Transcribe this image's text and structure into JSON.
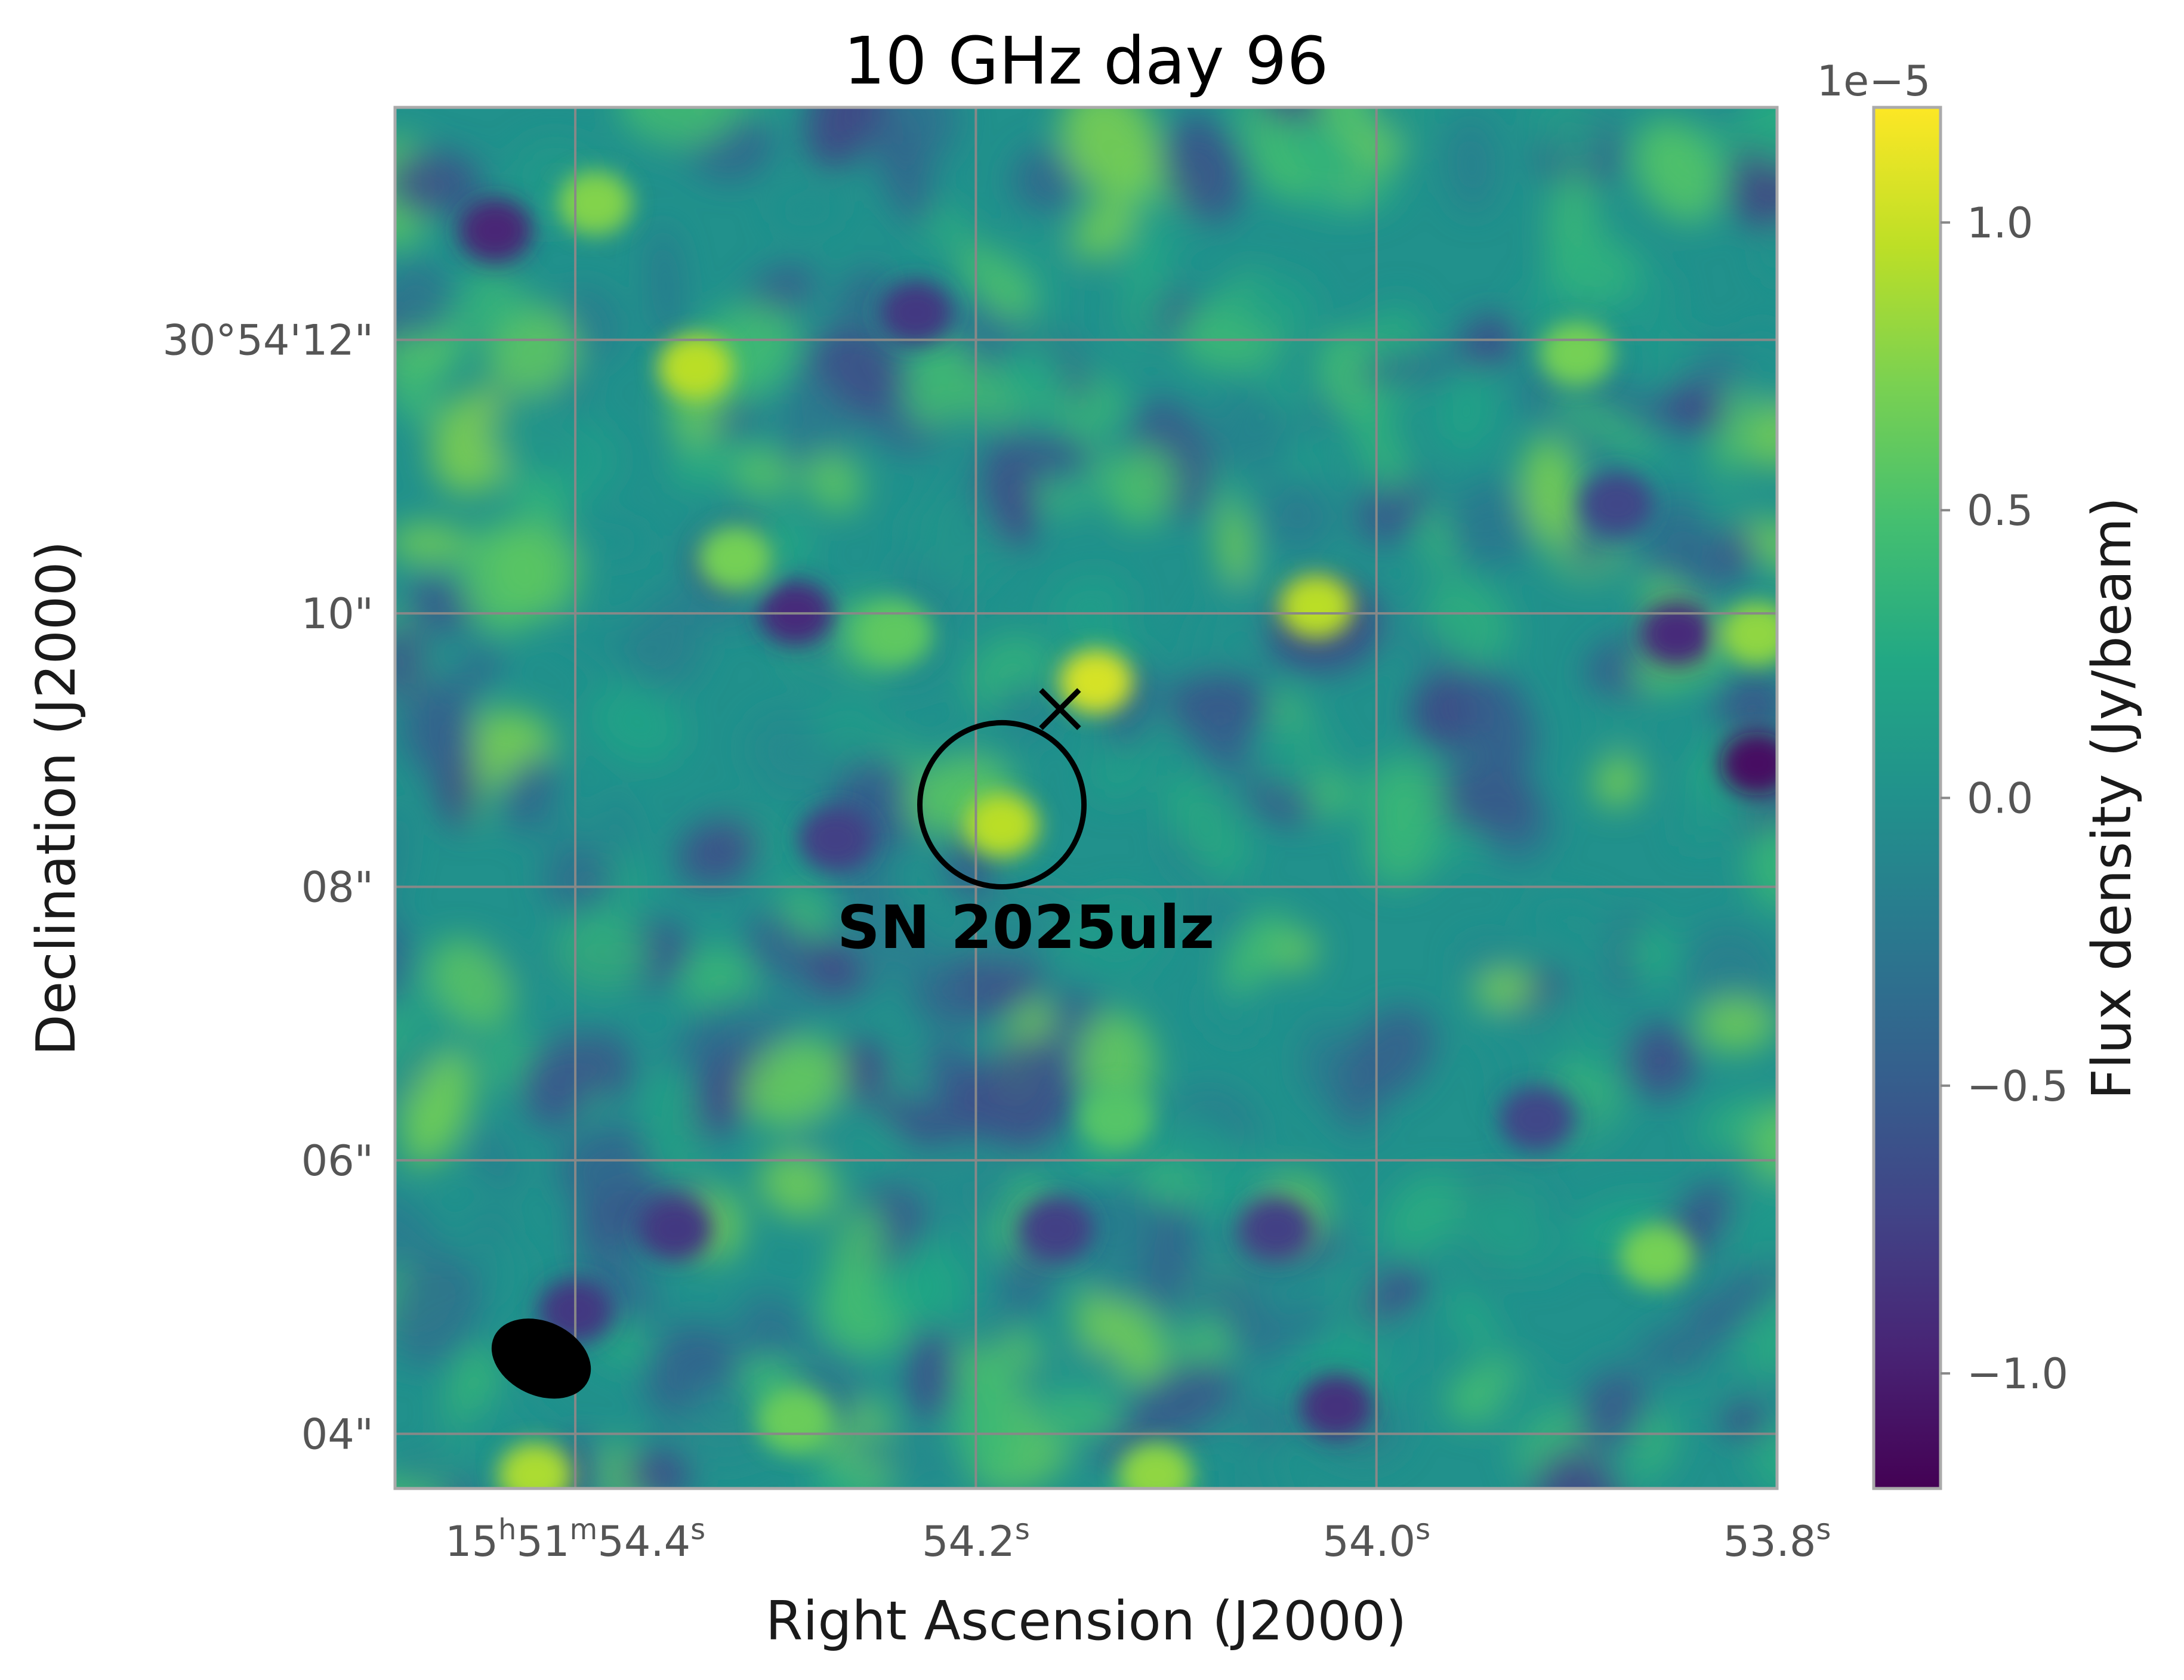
{
  "chart_data": {
    "type": "heatmap",
    "title": "10 GHz day 96",
    "xlabel": "Right Ascension (J2000)",
    "ylabel": "Declination (J2000)",
    "colorbar": {
      "label": "Flux density (Jy/beam)",
      "multiplier": "1e−5",
      "colormap": "viridis",
      "range": [
        -1.2,
        1.2
      ],
      "ticks": [
        {
          "value": -1.0,
          "label": "−1.0"
        },
        {
          "value": -0.5,
          "label": "−0.5"
        },
        {
          "value": 0.0,
          "label": "0.0"
        },
        {
          "value": 0.5,
          "label": "0.5"
        },
        {
          "value": 1.0,
          "label": "1.0"
        }
      ]
    },
    "x_ticks": [
      {
        "value": 54.4,
        "prefix": "15",
        "h": "h",
        "mid": "51",
        "m": "m",
        "main": "54.4",
        "s": "s"
      },
      {
        "value": 54.2,
        "main": "54.2",
        "s": "s"
      },
      {
        "value": 54.0,
        "main": "54.0",
        "s": "s"
      },
      {
        "value": 53.8,
        "main": "53.8",
        "s": "s"
      }
    ],
    "y_ticks": [
      {
        "value": 12,
        "label": "30°54'12\""
      },
      {
        "value": 10,
        "label": "10\""
      },
      {
        "value": 8,
        "label": "08\""
      },
      {
        "value": 6,
        "label": "06\""
      },
      {
        "value": 4,
        "label": "04\""
      }
    ],
    "xlim_seconds": [
      54.49,
      53.8
    ],
    "ylim_arcsec": [
      3.6,
      13.7
    ],
    "grid": true,
    "source": {
      "label": "SN 2025ulz",
      "ra_s": 54.187,
      "dec_arcsec": 8.6,
      "circle_radius_arcsec": 0.6
    },
    "cross_marker": {
      "ra_s": 54.158,
      "dec_arcsec": 9.3
    },
    "beam": {
      "ra_s": 54.417,
      "dec_arcsec": 4.55,
      "major_arcsec": 0.76,
      "minor_arcsec": 0.54,
      "angle_deg": 25
    },
    "bright_spots": [
      {
        "ra_s": 54.187,
        "dec_arcsec": 8.45,
        "value": 0.95
      },
      {
        "ra_s": 54.14,
        "dec_arcsec": 9.5,
        "value": 1.05
      },
      {
        "ra_s": 54.34,
        "dec_arcsec": 11.8,
        "value": 0.95
      },
      {
        "ra_s": 54.39,
        "dec_arcsec": 13.0,
        "value": 0.75
      },
      {
        "ra_s": 54.03,
        "dec_arcsec": 10.05,
        "value": 0.95
      },
      {
        "ra_s": 53.81,
        "dec_arcsec": 9.85,
        "value": 0.8
      },
      {
        "ra_s": 54.42,
        "dec_arcsec": 3.7,
        "value": 0.9
      },
      {
        "ra_s": 54.11,
        "dec_arcsec": 3.7,
        "value": 0.8
      },
      {
        "ra_s": 53.86,
        "dec_arcsec": 5.3,
        "value": 0.7
      },
      {
        "ra_s": 54.24,
        "dec_arcsec": 9.85,
        "value": 0.6
      },
      {
        "ra_s": 54.32,
        "dec_arcsec": 10.4,
        "value": 0.7
      },
      {
        "ra_s": 53.9,
        "dec_arcsec": 11.9,
        "value": 0.7
      },
      {
        "ra_s": 54.29,
        "dec_arcsec": 4.1,
        "value": 0.65
      },
      {
        "ra_s": 54.13,
        "dec_arcsec": 6.3,
        "value": 0.55
      }
    ],
    "dark_spots": [
      {
        "ra_s": 54.44,
        "dec_arcsec": 12.8,
        "value": -0.95
      },
      {
        "ra_s": 54.29,
        "dec_arcsec": 10.0,
        "value": -0.9
      },
      {
        "ra_s": 54.23,
        "dec_arcsec": 12.2,
        "value": -0.8
      },
      {
        "ra_s": 53.81,
        "dec_arcsec": 8.9,
        "value": -1.1
      },
      {
        "ra_s": 53.85,
        "dec_arcsec": 9.85,
        "value": -0.9
      },
      {
        "ra_s": 54.02,
        "dec_arcsec": 4.2,
        "value": -0.85
      },
      {
        "ra_s": 54.4,
        "dec_arcsec": 4.9,
        "value": -0.8
      },
      {
        "ra_s": 54.35,
        "dec_arcsec": 5.5,
        "value": -0.8
      },
      {
        "ra_s": 54.05,
        "dec_arcsec": 5.5,
        "value": -0.75
      },
      {
        "ra_s": 53.88,
        "dec_arcsec": 10.8,
        "value": -0.7
      },
      {
        "ra_s": 54.27,
        "dec_arcsec": 8.35,
        "value": -0.75
      },
      {
        "ra_s": 53.92,
        "dec_arcsec": 6.3,
        "value": -0.7
      },
      {
        "ra_s": 54.16,
        "dec_arcsec": 5.5,
        "value": -0.75
      }
    ]
  }
}
